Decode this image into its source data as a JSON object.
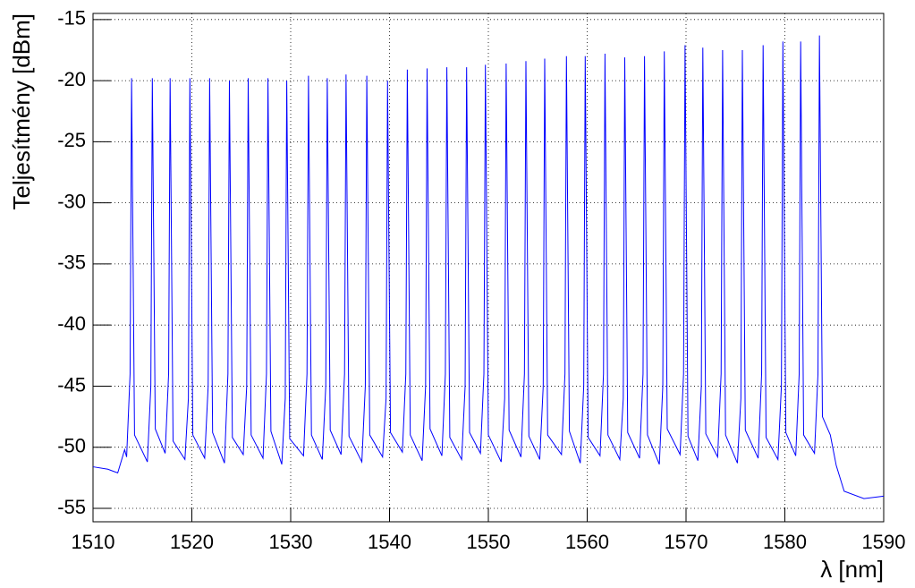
{
  "chart_data": {
    "type": "line",
    "x_label": "λ [nm]",
    "y_label": "Teljesítmény [dBm]",
    "color": "#0000ff",
    "grid": true,
    "xlim": [
      1510,
      1590
    ],
    "ylim": [
      -56.1,
      -14.5
    ],
    "xticks": [
      1510,
      1520,
      1530,
      1540,
      1550,
      1560,
      1570,
      1580,
      1590
    ],
    "yticks": [
      -55,
      -50,
      -45,
      -40,
      -35,
      -30,
      -25,
      -20,
      -15
    ],
    "x": [
      1510,
      1511.5,
      1512.5,
      1513.2,
      1513.4,
      1513.75,
      1513.9,
      1514.2,
      1515.5,
      1515.85,
      1516.0,
      1516.3,
      1517.3,
      1517.65,
      1517.8,
      1518.1,
      1519.3,
      1519.65,
      1519.8,
      1520.1,
      1521.3,
      1521.65,
      1521.8,
      1522.1,
      1523.3,
      1523.65,
      1523.8,
      1524.1,
      1525.2,
      1525.55,
      1525.7,
      1526.0,
      1527.2,
      1527.55,
      1527.7,
      1528.0,
      1529.1,
      1529.45,
      1529.6,
      1529.9,
      1531.3,
      1531.65,
      1531.8,
      1532.1,
      1533.2,
      1533.55,
      1533.7,
      1534.0,
      1535.1,
      1535.45,
      1535.6,
      1535.9,
      1537.2,
      1537.55,
      1537.7,
      1538.0,
      1539.3,
      1539.65,
      1539.8,
      1540.1,
      1541.3,
      1541.65,
      1541.8,
      1542.1,
      1543.3,
      1543.65,
      1543.8,
      1544.1,
      1545.3,
      1545.65,
      1545.8,
      1546.1,
      1547.3,
      1547.65,
      1547.8,
      1548.1,
      1549.2,
      1549.55,
      1549.7,
      1550.0,
      1551.3,
      1551.65,
      1551.8,
      1552.1,
      1553.3,
      1553.65,
      1553.8,
      1554.1,
      1555.2,
      1555.55,
      1555.7,
      1556.0,
      1557.4,
      1557.75,
      1557.9,
      1558.2,
      1559.3,
      1559.65,
      1559.8,
      1560.1,
      1561.3,
      1561.65,
      1561.8,
      1562.1,
      1563.3,
      1563.65,
      1563.8,
      1564.1,
      1565.3,
      1565.65,
      1565.8,
      1566.1,
      1567.3,
      1567.65,
      1567.8,
      1568.1,
      1569.4,
      1569.75,
      1569.9,
      1570.2,
      1571.2,
      1571.55,
      1571.7,
      1572.0,
      1573.2,
      1573.55,
      1573.7,
      1574.0,
      1575.2,
      1575.55,
      1575.7,
      1576.0,
      1577.3,
      1577.65,
      1577.8,
      1578.1,
      1579.3,
      1579.65,
      1579.8,
      1580.1,
      1581.1,
      1581.45,
      1581.6,
      1581.9,
      1583.0,
      1583.35,
      1583.5,
      1583.8,
      1584.6,
      1585.2,
      1586,
      1588,
      1590
    ],
    "values": [
      -51.6,
      -51.8,
      -52.1,
      -50.2,
      -50.8,
      -44,
      -19.8,
      -49,
      -51.2,
      -45,
      -19.8,
      -48.5,
      -50.5,
      -44,
      -19.8,
      -49.5,
      -51.0,
      -46,
      -19.8,
      -49,
      -50.9,
      -45,
      -19.8,
      -48.8,
      -51.3,
      -44,
      -20.0,
      -49.2,
      -50.6,
      -45,
      -19.8,
      -49,
      -50.9,
      -44,
      -19.8,
      -48.7,
      -51.4,
      -46,
      -20.0,
      -49.3,
      -50.7,
      -44,
      -19.6,
      -49,
      -51.0,
      -45,
      -19.8,
      -48.6,
      -50.6,
      -44,
      -19.5,
      -49.1,
      -51.2,
      -45,
      -19.6,
      -49,
      -50.8,
      -46,
      -20.0,
      -48.8,
      -50.4,
      -44,
      -19.1,
      -49,
      -51.1,
      -45,
      -19.0,
      -48.5,
      -50.7,
      -44,
      -18.9,
      -49.2,
      -51.0,
      -45,
      -18.9,
      -48.8,
      -50.5,
      -44,
      -18.7,
      -49,
      -51.2,
      -46,
      -18.6,
      -48.6,
      -50.8,
      -44,
      -18.4,
      -49.1,
      -51.0,
      -45,
      -18.2,
      -49,
      -50.6,
      -44,
      -18.0,
      -48.7,
      -51.3,
      -45,
      -18.0,
      -49.2,
      -50.7,
      -44,
      -17.8,
      -49,
      -51.0,
      -46,
      -18.1,
      -48.8,
      -50.9,
      -44,
      -18.0,
      -49,
      -51.4,
      -45,
      -17.6,
      -48.5,
      -50.6,
      -44,
      -17.1,
      -49.1,
      -51.1,
      -45,
      -17.3,
      -48.9,
      -50.8,
      -44,
      -17.5,
      -49,
      -51.3,
      -46,
      -17.5,
      -48.6,
      -50.9,
      -44,
      -17.1,
      -49.2,
      -51.0,
      -45,
      -16.8,
      -48.8,
      -50.7,
      -44,
      -16.8,
      -49,
      -50.5,
      -44,
      -16.3,
      -47.5,
      -49,
      -51.5,
      -53.6,
      -54.2,
      -54.0
    ]
  }
}
